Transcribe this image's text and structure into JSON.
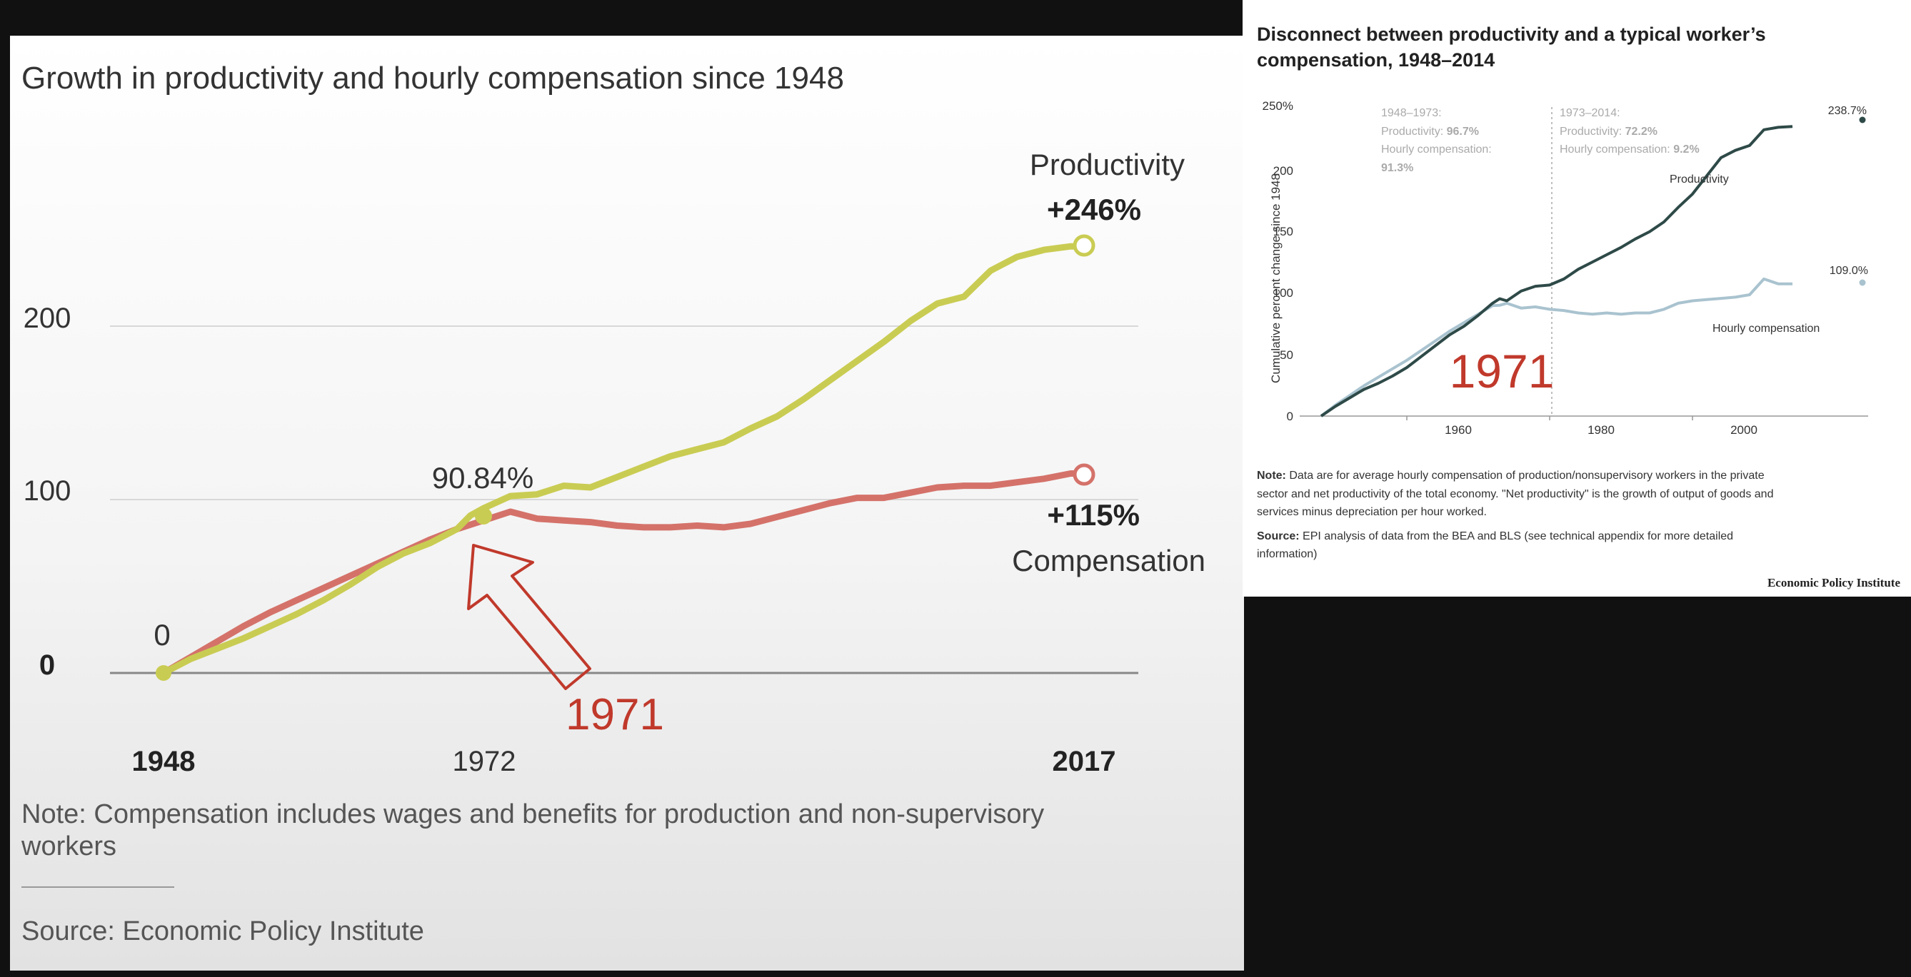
{
  "chart_data": [
    {
      "type": "line",
      "title": "Growth in productivity and hourly compensation since 1948",
      "x_ticks": [
        "1948",
        "1972",
        "2017"
      ],
      "y_ticks": [
        "0",
        "100",
        "200"
      ],
      "xlim": [
        1948,
        2017
      ],
      "ylim": [
        0,
        260
      ],
      "grid": true,
      "series": [
        {
          "name": "Productivity",
          "color": "#c9cc52",
          "x": [
            1948,
            1950,
            1952,
            1954,
            1956,
            1958,
            1960,
            1962,
            1964,
            1966,
            1968,
            1970,
            1971,
            1972,
            1974,
            1976,
            1978,
            1980,
            1982,
            1984,
            1986,
            1988,
            1990,
            1992,
            1994,
            1996,
            1998,
            2000,
            2002,
            2004,
            2006,
            2008,
            2010,
            2012,
            2014,
            2016,
            2017
          ],
          "values": [
            0,
            8,
            14,
            20,
            27,
            34,
            42,
            51,
            61,
            69,
            75,
            83,
            90.84,
            95,
            102,
            103,
            108,
            107,
            113,
            119,
            125,
            129,
            133,
            141,
            148,
            158,
            169,
            180,
            191,
            203,
            213,
            217,
            232,
            240,
            244,
            246,
            246
          ]
        },
        {
          "name": "Compensation",
          "color": "#d4726a",
          "x": [
            1948,
            1950,
            1952,
            1954,
            1956,
            1958,
            1960,
            1962,
            1964,
            1966,
            1968,
            1970,
            1972,
            1974,
            1976,
            1978,
            1980,
            1982,
            1984,
            1986,
            1988,
            1990,
            1992,
            1994,
            1996,
            1998,
            2000,
            2002,
            2004,
            2006,
            2008,
            2010,
            2012,
            2014,
            2016,
            2017
          ],
          "values": [
            0,
            9,
            18,
            27,
            35,
            42,
            49,
            56,
            63,
            70,
            77,
            83,
            88,
            93,
            89,
            88,
            87,
            85,
            84,
            84,
            85,
            84,
            86,
            90,
            94,
            98,
            101,
            101,
            104,
            107,
            108,
            108,
            110,
            112,
            115,
            115
          ]
        }
      ],
      "annotations": {
        "productivity_label": "Productivity",
        "productivity_value": "+246%",
        "compensation_value": "+115%",
        "compensation_label": "Compensation",
        "point_1972_label": "90.84%",
        "start_label": "0",
        "year_1971": "1971"
      },
      "note": "Note: Compensation includes wages and benefits for production and non-supervisory",
      "note_cont": "workers",
      "source": "Source: Economic Policy Institute"
    },
    {
      "type": "line",
      "title_line1": "Disconnect between productivity and a typical worker’s",
      "title_line2": "compensation, 1948–2014",
      "ylabel": "Cumulative percent change since 1948",
      "x_ticks": [
        "1960",
        "1980",
        "2000"
      ],
      "y_ticks": [
        "0",
        "50",
        "100",
        "150",
        "200",
        "250%"
      ],
      "xlim": [
        1948,
        2014
      ],
      "ylim": [
        0,
        250
      ],
      "grid": false,
      "series": [
        {
          "name": "Productivity",
          "color": "#2e4a48",
          "x": [
            1948,
            1950,
            1952,
            1954,
            1956,
            1958,
            1960,
            1962,
            1964,
            1966,
            1968,
            1970,
            1972,
            1973,
            1974,
            1976,
            1978,
            1980,
            1982,
            1984,
            1986,
            1988,
            1990,
            1992,
            1994,
            1996,
            1998,
            2000,
            2002,
            2004,
            2006,
            2008,
            2010,
            2012,
            2014
          ],
          "values": [
            0,
            8,
            15,
            22,
            27,
            33,
            40,
            49,
            58,
            67,
            74,
            83,
            93,
            96.7,
            95,
            103,
            107,
            108,
            113,
            121,
            127,
            133,
            139,
            146,
            152,
            160,
            172,
            183,
            198,
            213,
            219,
            223,
            236,
            238,
            238.7
          ]
        },
        {
          "name": "Hourly compensation",
          "color": "#a9c3cf",
          "x": [
            1948,
            1950,
            1952,
            1954,
            1956,
            1958,
            1960,
            1962,
            1964,
            1966,
            1968,
            1970,
            1972,
            1973,
            1974,
            1976,
            1978,
            1980,
            1982,
            1984,
            1986,
            1988,
            1990,
            1992,
            1994,
            1996,
            1998,
            2000,
            2002,
            2004,
            2006,
            2008,
            2010,
            2012,
            2014
          ],
          "values": [
            0,
            9,
            17,
            25,
            32,
            39,
            46,
            54,
            62,
            70,
            77,
            84,
            91,
            91.3,
            93,
            89,
            90,
            88,
            87,
            85,
            84,
            85,
            84,
            85,
            85,
            88,
            93,
            95,
            96,
            97,
            98,
            100,
            113,
            109,
            109
          ]
        }
      ],
      "annotations": {
        "period1_head": "1948–1973:",
        "period1_prod_label": "Productivity:",
        "period1_prod_value": "96.7%",
        "period1_comp_label": "Hourly compensation:",
        "period1_comp_value": "91.3%",
        "period2_head": "1973–2014:",
        "period2_prod_label": "Productivity:",
        "period2_prod_value": "72.2%",
        "period2_comp_label": "Hourly compensation:",
        "period2_comp_value": "9.2%",
        "end_prod_value": "238.7%",
        "end_comp_value": "109.0%",
        "prod_series_label": "Productivity",
        "comp_series_label": "Hourly compensation",
        "year_1971": "1971"
      },
      "note_label": "Note:",
      "note_line1": "Data are for average hourly compensation of production/nonsupervisory workers in the private",
      "note_line2": "sector and net productivity of the total economy. \"Net productivity\" is the growth of output of goods and",
      "note_line3": "services minus depreciation per hour worked.",
      "source_label": "Source:",
      "source_line1": "EPI analysis of data from the BEA and BLS (see technical appendix for more detailed",
      "source_line2": "information)",
      "publisher": "Economic Policy Institute"
    }
  ]
}
